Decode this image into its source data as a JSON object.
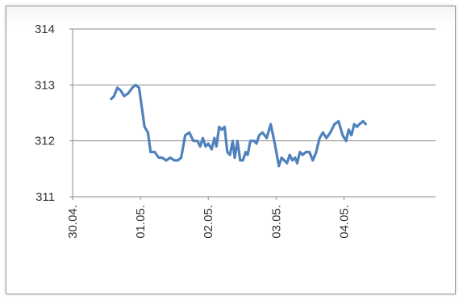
{
  "chart_data": {
    "type": "line",
    "title": "",
    "xlabel": "",
    "ylabel": "",
    "ylim": [
      311,
      314
    ],
    "yticks": [
      "311",
      "312",
      "313",
      "314"
    ],
    "xlim": [
      0,
      5.35
    ],
    "xticks": [
      "30.04.",
      "01.05.",
      "02.05.",
      "03.05.",
      "04.05."
    ],
    "grid": true,
    "legend": "none",
    "series": [
      {
        "color": "#4f81bd",
        "x": [
          0.57,
          0.61,
          0.66,
          0.71,
          0.76,
          0.82,
          0.88,
          0.93,
          0.98,
          1.02,
          1.06,
          1.11,
          1.15,
          1.21,
          1.27,
          1.32,
          1.38,
          1.44,
          1.5,
          1.55,
          1.6,
          1.66,
          1.72,
          1.78,
          1.84,
          1.88,
          1.92,
          1.96,
          2.0,
          2.05,
          2.09,
          2.12,
          2.16,
          2.2,
          2.24,
          2.28,
          2.32,
          2.36,
          2.39,
          2.43,
          2.47,
          2.51,
          2.55,
          2.58,
          2.62,
          2.65,
          2.68,
          2.71,
          2.75,
          2.8,
          2.86,
          2.92,
          2.98,
          3.04,
          3.08,
          3.12,
          3.16,
          3.2,
          3.24,
          3.28,
          3.31,
          3.35,
          3.39,
          3.44,
          3.49,
          3.54,
          3.59,
          3.64,
          3.69,
          3.74,
          3.8,
          3.86,
          3.92,
          3.98,
          4.03,
          4.07,
          4.11,
          4.15,
          4.19,
          4.23,
          4.28,
          4.32
        ],
        "y": [
          312.75,
          312.8,
          312.95,
          312.9,
          312.8,
          312.85,
          312.95,
          313.0,
          312.95,
          312.6,
          312.25,
          312.15,
          311.8,
          311.8,
          311.7,
          311.7,
          311.65,
          311.7,
          311.65,
          311.65,
          311.7,
          312.1,
          312.15,
          312.0,
          312.0,
          311.9,
          312.05,
          311.9,
          311.95,
          311.85,
          312.05,
          311.9,
          312.25,
          312.2,
          312.25,
          311.8,
          311.75,
          312.0,
          311.7,
          312.0,
          311.65,
          311.65,
          311.8,
          311.75,
          312.0,
          312.0,
          312.0,
          311.95,
          312.1,
          312.15,
          312.05,
          312.3,
          311.95,
          311.55,
          311.7,
          311.65,
          311.6,
          311.75,
          311.65,
          311.7,
          311.6,
          311.8,
          311.75,
          311.8,
          311.8,
          311.65,
          311.8,
          312.05,
          312.15,
          312.05,
          312.15,
          312.3,
          312.35,
          312.1,
          312.0,
          312.2,
          312.1,
          312.3,
          312.25,
          312.3,
          312.35,
          312.3
        ]
      }
    ]
  }
}
